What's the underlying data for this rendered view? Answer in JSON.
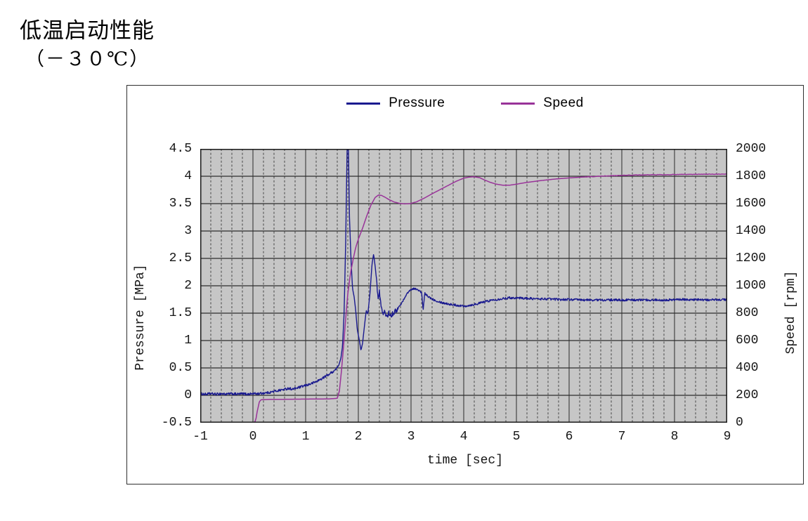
{
  "page": {
    "title_line1": "低温启动性能",
    "title_line2": "（－３０℃）"
  },
  "legend": {
    "items": [
      {
        "label": "Pressure",
        "color": "#1a1a8f"
      },
      {
        "label": "Speed",
        "color": "#993399"
      }
    ]
  },
  "chart_data": {
    "type": "line",
    "title": "低温启动性能（－３０℃）",
    "xlabel": "time [sec]",
    "ylabel_left": "Pressure [MPa]",
    "ylabel_right": "Speed [rpm]",
    "xlim": [
      -1,
      9
    ],
    "ylim_left": [
      -0.5,
      4.5
    ],
    "ylim_right": [
      0,
      2000
    ],
    "x_major_ticks": [
      -1,
      0,
      1,
      2,
      3,
      4,
      5,
      6,
      7,
      8,
      9
    ],
    "x_minor_step": 0.2,
    "y_left_ticks": [
      4.5,
      4,
      3.5,
      3,
      2.5,
      2,
      1.5,
      1,
      0.5,
      0,
      -0.5
    ],
    "y_right_ticks": [
      2000,
      1800,
      1600,
      1400,
      1200,
      1000,
      800,
      600,
      400,
      200,
      0
    ],
    "grid": {
      "plot_bg": "#c6c6c6",
      "major_v_color": "#3a3a3a",
      "minor_v_color": "#474747",
      "major_h_color": "#2d2d2d",
      "border_color": "#1a1a1a",
      "minor_dash": "3 2.6"
    },
    "legend_position": "top-center",
    "series": [
      {
        "name": "Pressure",
        "axis": "left",
        "color": "#1a1a8f",
        "stroke_width": 1.4,
        "sample_dt": 0.008,
        "noise_segments": [
          [
            -1.0,
            1.6,
            0.022
          ],
          [
            1.6,
            2.33,
            0.0
          ],
          [
            2.33,
            2.78,
            0.045
          ],
          [
            2.78,
            3.18,
            0.015
          ],
          [
            3.18,
            9.0,
            0.02
          ]
        ],
        "points": [
          [
            -1.0,
            0.03
          ],
          [
            -0.9,
            0.02
          ],
          [
            -0.8,
            0.03
          ],
          [
            -0.7,
            0.02
          ],
          [
            -0.6,
            0.03
          ],
          [
            -0.5,
            0.02
          ],
          [
            -0.4,
            0.03
          ],
          [
            -0.3,
            0.02
          ],
          [
            -0.2,
            0.03
          ],
          [
            -0.1,
            0.02
          ],
          [
            0.0,
            0.03
          ],
          [
            0.1,
            0.03
          ],
          [
            0.2,
            0.04
          ],
          [
            0.3,
            0.05
          ],
          [
            0.4,
            0.07
          ],
          [
            0.5,
            0.09
          ],
          [
            0.6,
            0.11
          ],
          [
            0.68,
            0.13
          ],
          [
            0.75,
            0.11
          ],
          [
            0.82,
            0.13
          ],
          [
            0.9,
            0.15
          ],
          [
            1.0,
            0.18
          ],
          [
            1.1,
            0.21
          ],
          [
            1.2,
            0.25
          ],
          [
            1.3,
            0.3
          ],
          [
            1.4,
            0.36
          ],
          [
            1.5,
            0.42
          ],
          [
            1.58,
            0.48
          ],
          [
            1.63,
            0.55
          ],
          [
            1.67,
            0.68
          ],
          [
            1.7,
            0.9
          ],
          [
            1.73,
            1.5
          ],
          [
            1.76,
            2.8
          ],
          [
            1.79,
            4.7
          ],
          [
            1.81,
            4.7
          ],
          [
            1.83,
            3.3
          ],
          [
            1.86,
            2.5
          ],
          [
            1.89,
            1.95
          ],
          [
            1.92,
            1.8
          ],
          [
            1.95,
            1.55
          ],
          [
            1.98,
            1.2
          ],
          [
            2.02,
            1.0
          ],
          [
            2.05,
            0.82
          ],
          [
            2.08,
            0.95
          ],
          [
            2.12,
            1.3
          ],
          [
            2.15,
            1.55
          ],
          [
            2.18,
            1.48
          ],
          [
            2.22,
            1.85
          ],
          [
            2.26,
            2.4
          ],
          [
            2.29,
            2.58
          ],
          [
            2.32,
            2.35
          ],
          [
            2.35,
            2.05
          ],
          [
            2.38,
            1.7
          ],
          [
            2.4,
            1.92
          ],
          [
            2.43,
            1.65
          ],
          [
            2.46,
            1.48
          ],
          [
            2.5,
            1.52
          ],
          [
            2.54,
            1.44
          ],
          [
            2.58,
            1.5
          ],
          [
            2.62,
            1.46
          ],
          [
            2.66,
            1.5
          ],
          [
            2.7,
            1.53
          ],
          [
            2.75,
            1.58
          ],
          [
            2.8,
            1.65
          ],
          [
            2.85,
            1.73
          ],
          [
            2.9,
            1.82
          ],
          [
            2.95,
            1.89
          ],
          [
            3.0,
            1.93
          ],
          [
            3.05,
            1.95
          ],
          [
            3.1,
            1.94
          ],
          [
            3.15,
            1.91
          ],
          [
            3.2,
            1.88
          ],
          [
            3.23,
            1.55
          ],
          [
            3.26,
            1.86
          ],
          [
            3.3,
            1.82
          ],
          [
            3.4,
            1.76
          ],
          [
            3.5,
            1.72
          ],
          [
            3.6,
            1.69
          ],
          [
            3.75,
            1.66
          ],
          [
            3.9,
            1.64
          ],
          [
            4.0,
            1.63
          ],
          [
            4.1,
            1.64
          ],
          [
            4.25,
            1.67
          ],
          [
            4.4,
            1.71
          ],
          [
            4.55,
            1.74
          ],
          [
            4.7,
            1.76
          ],
          [
            4.85,
            1.78
          ],
          [
            5.0,
            1.78
          ],
          [
            5.2,
            1.77
          ],
          [
            5.4,
            1.76
          ],
          [
            5.6,
            1.76
          ],
          [
            5.8,
            1.75
          ],
          [
            6.0,
            1.75
          ],
          [
            6.3,
            1.74
          ],
          [
            6.6,
            1.74
          ],
          [
            7.0,
            1.74
          ],
          [
            7.4,
            1.74
          ],
          [
            7.8,
            1.74
          ],
          [
            8.2,
            1.75
          ],
          [
            8.6,
            1.74
          ],
          [
            9.0,
            1.75
          ]
        ]
      },
      {
        "name": "Speed",
        "axis": "right",
        "color": "#993399",
        "stroke_width": 1.5,
        "sample_dt": 0.02,
        "noise_segments": [
          [
            6.3,
            9.0,
            2
          ]
        ],
        "points": [
          [
            -1.0,
            0
          ],
          [
            -0.5,
            0
          ],
          [
            -0.2,
            0
          ],
          [
            0.0,
            0
          ],
          [
            0.05,
            10
          ],
          [
            0.08,
            80
          ],
          [
            0.12,
            150
          ],
          [
            0.15,
            168
          ],
          [
            0.3,
            170
          ],
          [
            0.6,
            171
          ],
          [
            0.9,
            172
          ],
          [
            1.2,
            173
          ],
          [
            1.45,
            174
          ],
          [
            1.6,
            178
          ],
          [
            1.64,
            230
          ],
          [
            1.68,
            380
          ],
          [
            1.72,
            560
          ],
          [
            1.76,
            760
          ],
          [
            1.8,
            940
          ],
          [
            1.85,
            1090
          ],
          [
            1.9,
            1190
          ],
          [
            1.95,
            1280
          ],
          [
            2.0,
            1340
          ],
          [
            2.08,
            1420
          ],
          [
            2.16,
            1510
          ],
          [
            2.24,
            1590
          ],
          [
            2.32,
            1645
          ],
          [
            2.38,
            1662
          ],
          [
            2.44,
            1660
          ],
          [
            2.5,
            1648
          ],
          [
            2.58,
            1630
          ],
          [
            2.68,
            1612
          ],
          [
            2.78,
            1602
          ],
          [
            2.88,
            1598
          ],
          [
            2.98,
            1600
          ],
          [
            3.1,
            1612
          ],
          [
            3.25,
            1640
          ],
          [
            3.4,
            1672
          ],
          [
            3.55,
            1702
          ],
          [
            3.7,
            1732
          ],
          [
            3.85,
            1762
          ],
          [
            4.0,
            1786
          ],
          [
            4.1,
            1794
          ],
          [
            4.2,
            1796
          ],
          [
            4.3,
            1790
          ],
          [
            4.4,
            1772
          ],
          [
            4.5,
            1756
          ],
          [
            4.62,
            1742
          ],
          [
            4.75,
            1734
          ],
          [
            4.88,
            1735
          ],
          [
            5.0,
            1742
          ],
          [
            5.15,
            1752
          ],
          [
            5.3,
            1760
          ],
          [
            5.5,
            1770
          ],
          [
            5.75,
            1780
          ],
          [
            6.0,
            1788
          ],
          [
            6.25,
            1794
          ],
          [
            6.5,
            1799
          ],
          [
            6.75,
            1803
          ],
          [
            7.0,
            1806
          ],
          [
            7.3,
            1809
          ],
          [
            7.6,
            1811
          ],
          [
            8.0,
            1812
          ],
          [
            8.4,
            1814
          ],
          [
            8.7,
            1815
          ],
          [
            9.0,
            1816
          ]
        ]
      }
    ]
  }
}
